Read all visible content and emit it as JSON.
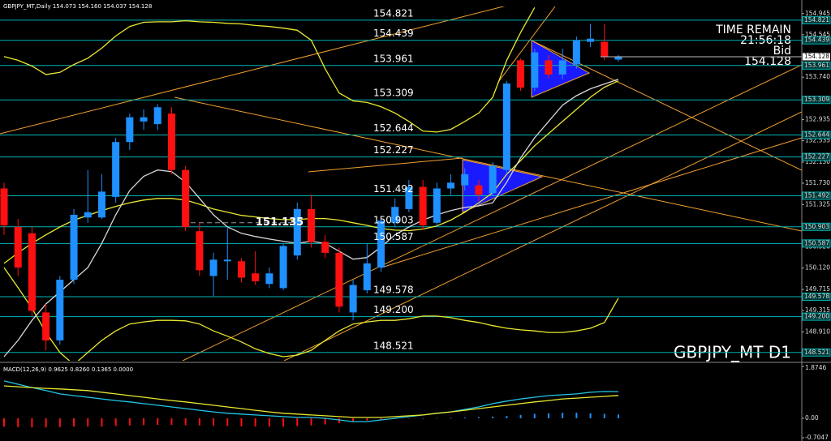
{
  "chart_data": [
    {
      "type": "candlestick",
      "title": "GBPJPY_MT,Daily 154.073 154.160 154.037 154.128",
      "ylim": [
        148.41,
        155.08
      ],
      "yticks": [
        154.945,
        154.545,
        {
          "value": 153.74,
          "label": "153.740"
        },
        152.935,
        152.535,
        {
          "value": 152.13,
          "label": "152.130"
        },
        {
          "value": 151.73,
          "label": "151.730"
        },
        151.325,
        {
          "value": 150.52,
          "label": "150.520"
        },
        {
          "value": 150.12,
          "label": "150.120"
        },
        149.715,
        149.315,
        {
          "value": 148.91,
          "label": "148.910"
        }
      ],
      "up_color": "#1e90ff",
      "down_color": "#ff1010",
      "open": [
        151.63,
        150.9,
        150.78,
        149.28,
        148.75,
        149.9,
        151.08,
        151.08,
        151.47,
        152.51,
        152.9,
        152.85,
        153.05,
        151.98,
        150.82,
        149.97,
        150.25,
        150.25,
        150.02,
        149.82,
        149.74,
        150.36,
        151.24,
        150.62,
        150.41,
        149.28,
        149.7,
        150.13,
        150.98,
        151.24,
        151.66,
        150.98,
        151.63,
        151.69,
        151.69,
        151.54,
        151.98,
        154.06,
        153.54,
        154.06,
        153.79,
        153.98,
        154.41,
        154.41,
        154.073
      ],
      "high": [
        151.74,
        151.05,
        150.9,
        149.44,
        149.97,
        151.24,
        151.98,
        151.9,
        152.59,
        153.05,
        153.13,
        153.23,
        153.17,
        152.06,
        150.98,
        150.41,
        150.9,
        150.31,
        150.44,
        150.13,
        150.59,
        151.36,
        151.51,
        150.75,
        150.51,
        149.9,
        150.59,
        151.05,
        151.44,
        151.79,
        151.79,
        151.74,
        151.9,
        152.01,
        151.79,
        152.13,
        153.67,
        154.1,
        154.28,
        154.16,
        154.28,
        154.51,
        154.75,
        154.75,
        154.16
      ],
      "low": [
        150.75,
        149.97,
        149.21,
        148.56,
        148.67,
        149.82,
        150.98,
        151.05,
        151.36,
        152.36,
        152.74,
        152.74,
        151.9,
        150.82,
        149.97,
        149.59,
        149.9,
        149.85,
        149.8,
        149.74,
        149.7,
        150.28,
        150.51,
        150.31,
        149.28,
        149.13,
        149.64,
        150.05,
        150.9,
        151.18,
        150.85,
        150.9,
        151.51,
        151.59,
        151.39,
        151.48,
        151.9,
        153.48,
        153.48,
        153.72,
        153.7,
        153.9,
        154.31,
        154.06,
        154.037
      ],
      "close": [
        150.93,
        150.13,
        149.31,
        148.75,
        149.9,
        151.13,
        151.18,
        151.57,
        152.51,
        152.98,
        152.98,
        153.17,
        151.98,
        150.9,
        150.08,
        150.28,
        150.28,
        149.94,
        149.87,
        150.02,
        150.54,
        151.24,
        150.62,
        150.41,
        149.39,
        149.8,
        150.21,
        151.02,
        151.28,
        151.66,
        150.93,
        151.63,
        151.74,
        151.9,
        151.51,
        152.06,
        153.62,
        153.54,
        154.21,
        153.79,
        154.06,
        154.44,
        154.47,
        154.13,
        154.128
      ],
      "series": [
        {
          "color": "#e8e830",
          "values": [
            154.13,
            154.06,
            153.95,
            153.79,
            153.83,
            153.98,
            154.1,
            154.29,
            154.52,
            154.7,
            154.78,
            154.79,
            154.79,
            154.81,
            154.79,
            154.78,
            154.76,
            154.75,
            154.72,
            154.7,
            154.67,
            154.63,
            154.44,
            153.9,
            153.44,
            153.29,
            153.26,
            153.18,
            153.06,
            152.9,
            152.72,
            152.7,
            152.75,
            152.9,
            153.06,
            153.36,
            154.06,
            154.59,
            155.06,
            null,
            null,
            null,
            null,
            null,
            null
          ]
        },
        {
          "color": "#e8e830",
          "values": [
            150.21,
            150.41,
            150.59,
            150.75,
            150.9,
            151.03,
            151.12,
            151.21,
            151.29,
            151.36,
            151.41,
            151.44,
            151.44,
            151.41,
            151.33,
            151.24,
            151.18,
            151.12,
            151.09,
            151.06,
            151.04,
            151.04,
            151.06,
            151.06,
            151.03,
            150.98,
            150.93,
            150.87,
            150.84,
            150.83,
            150.86,
            150.92,
            151.03,
            151.18,
            151.36,
            151.55,
            151.9,
            152.16,
            152.44,
            152.67,
            152.9,
            153.13,
            153.36,
            153.55,
            153.67
          ]
        },
        {
          "color": "#e8e830",
          "values": [
            150.13,
            149.75,
            149.36,
            148.9,
            148.52,
            148.29,
            148.52,
            148.75,
            148.93,
            149.06,
            149.1,
            149.13,
            149.13,
            149.12,
            149.06,
            148.93,
            148.83,
            148.72,
            148.59,
            148.5,
            148.44,
            148.47,
            148.56,
            148.75,
            148.93,
            149.06,
            149.1,
            149.13,
            149.13,
            149.16,
            149.21,
            149.21,
            149.18,
            149.13,
            149.09,
            149.03,
            148.98,
            148.95,
            148.93,
            148.9,
            148.9,
            148.93,
            148.98,
            149.09,
            149.55
          ]
        },
        {
          "color": "#d8d8d8",
          "values": [
            148.44,
            148.75,
            149.13,
            149.44,
            149.67,
            149.9,
            150.13,
            150.59,
            151.13,
            151.59,
            151.86,
            151.98,
            151.95,
            151.75,
            151.44,
            151.13,
            150.9,
            150.78,
            150.72,
            150.67,
            150.63,
            150.59,
            150.63,
            150.59,
            150.44,
            150.29,
            150.32,
            150.52,
            150.75,
            150.9,
            151.03,
            151.13,
            151.21,
            151.27,
            151.3,
            151.36,
            151.75,
            152.21,
            152.59,
            152.9,
            153.21,
            153.39,
            153.52,
            153.61,
            153.7
          ]
        }
      ],
      "levels": [
        154.821,
        154.439,
        153.961,
        153.309,
        152.644,
        152.227,
        151.492,
        150.903,
        150.587,
        149.578,
        {
          "value": 149.2,
          "label": "149.200"
        },
        148.521
      ],
      "level_color": "#00b4b4",
      "current_price": 154.128,
      "annotations": [
        151.135
      ],
      "info": [
        "TIME REMAIN",
        "21:56:18",
        "Bid",
        "154.128"
      ],
      "watermark": "GBPJPY_MT D1"
    },
    {
      "type": "macd",
      "title": "MACD(12,26,9) 0.9625 0.8260 0.1365 0.0000",
      "ylim": [
        -0.7047,
        1.8746
      ],
      "yticks": [
        1.8746,
        {
          "value": 0,
          "label": "0.00"
        },
        -0.7047
      ],
      "up_color": "#1e90ff",
      "down_color": "#ff1010",
      "histogram": [
        -0.3,
        -0.32,
        -0.33,
        -0.33,
        -0.32,
        -0.3,
        -0.3,
        -0.3,
        -0.28,
        -0.26,
        -0.25,
        -0.24,
        -0.24,
        -0.25,
        -0.26,
        -0.27,
        -0.28,
        -0.29,
        -0.3,
        -0.3,
        -0.3,
        -0.28,
        -0.26,
        -0.22,
        -0.18,
        -0.12,
        -0.08,
        -0.05,
        -0.03,
        -0.01,
        0,
        0.01,
        0.02,
        0.03,
        0.04,
        0.06,
        0.08,
        0.12,
        0.16,
        0.18,
        0.2,
        0.2,
        0.18,
        0.16,
        0.1365
      ],
      "series": [
        {
          "color": "#20c8e8",
          "values": [
            1.35,
            1.23,
            1.11,
            1.0,
            0.88,
            0.82,
            0.76,
            0.7,
            0.64,
            0.59,
            0.53,
            0.47,
            0.41,
            0.35,
            0.29,
            0.23,
            0.18,
            0.15,
            0.12,
            0.09,
            0.06,
            0.03,
            0.03,
            0,
            -0.06,
            -0.12,
            -0.12,
            -0.06,
            0,
            0.06,
            0.12,
            0.18,
            0.23,
            0.32,
            0.41,
            0.53,
            0.62,
            0.7,
            0.76,
            0.82,
            0.85,
            0.88,
            0.94,
            0.97,
            0.9625
          ]
        },
        {
          "color": "#e8e830",
          "values": [
            1.17,
            1.14,
            1.11,
            1.08,
            1.06,
            1.03,
            1.0,
            0.94,
            0.88,
            0.82,
            0.76,
            0.7,
            0.64,
            0.59,
            0.53,
            0.47,
            0.41,
            0.35,
            0.29,
            0.23,
            0.18,
            0.15,
            0.12,
            0.09,
            0.06,
            0.03,
            0.03,
            0.03,
            0.06,
            0.09,
            0.12,
            0.18,
            0.23,
            0.29,
            0.35,
            0.41,
            0.47,
            0.53,
            0.59,
            0.64,
            0.7,
            0.73,
            0.76,
            0.79,
            0.826
          ]
        }
      ]
    }
  ]
}
